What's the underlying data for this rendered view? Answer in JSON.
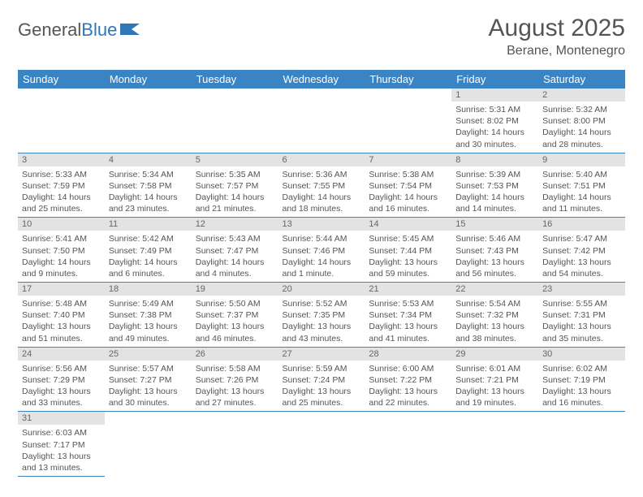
{
  "logo": {
    "part1": "General",
    "part2": "Blue"
  },
  "title": "August 2025",
  "location": "Berane, Montenegro",
  "colors": {
    "header_bg": "#3b84c4",
    "header_text": "#ffffff",
    "daynum_bg": "#e3e3e3",
    "daynum_text": "#666666",
    "body_text": "#555555",
    "row_border": "#3b84c4",
    "logo_gray": "#555555",
    "logo_blue": "#2f76bb"
  },
  "weekdays": [
    "Sunday",
    "Monday",
    "Tuesday",
    "Wednesday",
    "Thursday",
    "Friday",
    "Saturday"
  ],
  "grid": [
    [
      null,
      null,
      null,
      null,
      null,
      {
        "n": "1",
        "sr": "Sunrise: 5:31 AM",
        "ss": "Sunset: 8:02 PM",
        "d1": "Daylight: 14 hours",
        "d2": "and 30 minutes."
      },
      {
        "n": "2",
        "sr": "Sunrise: 5:32 AM",
        "ss": "Sunset: 8:00 PM",
        "d1": "Daylight: 14 hours",
        "d2": "and 28 minutes."
      }
    ],
    [
      {
        "n": "3",
        "sr": "Sunrise: 5:33 AM",
        "ss": "Sunset: 7:59 PM",
        "d1": "Daylight: 14 hours",
        "d2": "and 25 minutes."
      },
      {
        "n": "4",
        "sr": "Sunrise: 5:34 AM",
        "ss": "Sunset: 7:58 PM",
        "d1": "Daylight: 14 hours",
        "d2": "and 23 minutes."
      },
      {
        "n": "5",
        "sr": "Sunrise: 5:35 AM",
        "ss": "Sunset: 7:57 PM",
        "d1": "Daylight: 14 hours",
        "d2": "and 21 minutes."
      },
      {
        "n": "6",
        "sr": "Sunrise: 5:36 AM",
        "ss": "Sunset: 7:55 PM",
        "d1": "Daylight: 14 hours",
        "d2": "and 18 minutes."
      },
      {
        "n": "7",
        "sr": "Sunrise: 5:38 AM",
        "ss": "Sunset: 7:54 PM",
        "d1": "Daylight: 14 hours",
        "d2": "and 16 minutes."
      },
      {
        "n": "8",
        "sr": "Sunrise: 5:39 AM",
        "ss": "Sunset: 7:53 PM",
        "d1": "Daylight: 14 hours",
        "d2": "and 14 minutes."
      },
      {
        "n": "9",
        "sr": "Sunrise: 5:40 AM",
        "ss": "Sunset: 7:51 PM",
        "d1": "Daylight: 14 hours",
        "d2": "and 11 minutes."
      }
    ],
    [
      {
        "n": "10",
        "sr": "Sunrise: 5:41 AM",
        "ss": "Sunset: 7:50 PM",
        "d1": "Daylight: 14 hours",
        "d2": "and 9 minutes."
      },
      {
        "n": "11",
        "sr": "Sunrise: 5:42 AM",
        "ss": "Sunset: 7:49 PM",
        "d1": "Daylight: 14 hours",
        "d2": "and 6 minutes."
      },
      {
        "n": "12",
        "sr": "Sunrise: 5:43 AM",
        "ss": "Sunset: 7:47 PM",
        "d1": "Daylight: 14 hours",
        "d2": "and 4 minutes."
      },
      {
        "n": "13",
        "sr": "Sunrise: 5:44 AM",
        "ss": "Sunset: 7:46 PM",
        "d1": "Daylight: 14 hours",
        "d2": "and 1 minute."
      },
      {
        "n": "14",
        "sr": "Sunrise: 5:45 AM",
        "ss": "Sunset: 7:44 PM",
        "d1": "Daylight: 13 hours",
        "d2": "and 59 minutes."
      },
      {
        "n": "15",
        "sr": "Sunrise: 5:46 AM",
        "ss": "Sunset: 7:43 PM",
        "d1": "Daylight: 13 hours",
        "d2": "and 56 minutes."
      },
      {
        "n": "16",
        "sr": "Sunrise: 5:47 AM",
        "ss": "Sunset: 7:42 PM",
        "d1": "Daylight: 13 hours",
        "d2": "and 54 minutes."
      }
    ],
    [
      {
        "n": "17",
        "sr": "Sunrise: 5:48 AM",
        "ss": "Sunset: 7:40 PM",
        "d1": "Daylight: 13 hours",
        "d2": "and 51 minutes."
      },
      {
        "n": "18",
        "sr": "Sunrise: 5:49 AM",
        "ss": "Sunset: 7:38 PM",
        "d1": "Daylight: 13 hours",
        "d2": "and 49 minutes."
      },
      {
        "n": "19",
        "sr": "Sunrise: 5:50 AM",
        "ss": "Sunset: 7:37 PM",
        "d1": "Daylight: 13 hours",
        "d2": "and 46 minutes."
      },
      {
        "n": "20",
        "sr": "Sunrise: 5:52 AM",
        "ss": "Sunset: 7:35 PM",
        "d1": "Daylight: 13 hours",
        "d2": "and 43 minutes."
      },
      {
        "n": "21",
        "sr": "Sunrise: 5:53 AM",
        "ss": "Sunset: 7:34 PM",
        "d1": "Daylight: 13 hours",
        "d2": "and 41 minutes."
      },
      {
        "n": "22",
        "sr": "Sunrise: 5:54 AM",
        "ss": "Sunset: 7:32 PM",
        "d1": "Daylight: 13 hours",
        "d2": "and 38 minutes."
      },
      {
        "n": "23",
        "sr": "Sunrise: 5:55 AM",
        "ss": "Sunset: 7:31 PM",
        "d1": "Daylight: 13 hours",
        "d2": "and 35 minutes."
      }
    ],
    [
      {
        "n": "24",
        "sr": "Sunrise: 5:56 AM",
        "ss": "Sunset: 7:29 PM",
        "d1": "Daylight: 13 hours",
        "d2": "and 33 minutes."
      },
      {
        "n": "25",
        "sr": "Sunrise: 5:57 AM",
        "ss": "Sunset: 7:27 PM",
        "d1": "Daylight: 13 hours",
        "d2": "and 30 minutes."
      },
      {
        "n": "26",
        "sr": "Sunrise: 5:58 AM",
        "ss": "Sunset: 7:26 PM",
        "d1": "Daylight: 13 hours",
        "d2": "and 27 minutes."
      },
      {
        "n": "27",
        "sr": "Sunrise: 5:59 AM",
        "ss": "Sunset: 7:24 PM",
        "d1": "Daylight: 13 hours",
        "d2": "and 25 minutes."
      },
      {
        "n": "28",
        "sr": "Sunrise: 6:00 AM",
        "ss": "Sunset: 7:22 PM",
        "d1": "Daylight: 13 hours",
        "d2": "and 22 minutes."
      },
      {
        "n": "29",
        "sr": "Sunrise: 6:01 AM",
        "ss": "Sunset: 7:21 PM",
        "d1": "Daylight: 13 hours",
        "d2": "and 19 minutes."
      },
      {
        "n": "30",
        "sr": "Sunrise: 6:02 AM",
        "ss": "Sunset: 7:19 PM",
        "d1": "Daylight: 13 hours",
        "d2": "and 16 minutes."
      }
    ],
    [
      {
        "n": "31",
        "sr": "Sunrise: 6:03 AM",
        "ss": "Sunset: 7:17 PM",
        "d1": "Daylight: 13 hours",
        "d2": "and 13 minutes."
      },
      null,
      null,
      null,
      null,
      null,
      null
    ]
  ]
}
